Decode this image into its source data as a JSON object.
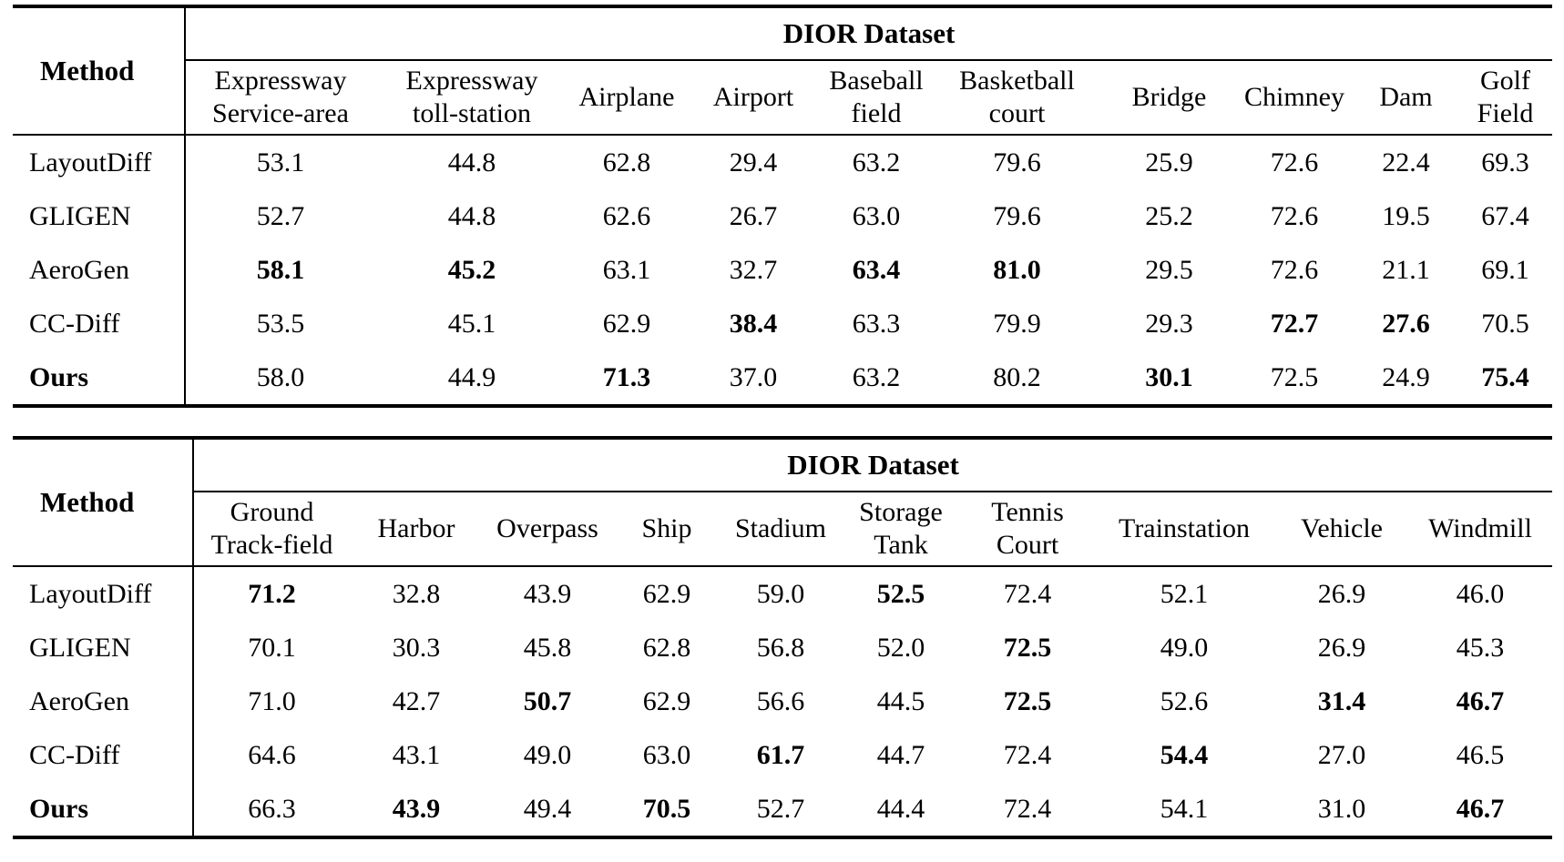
{
  "page": {
    "background": "#ffffff",
    "text_color": "#000000",
    "rule_color": "#000000"
  },
  "tables": [
    {
      "dataset_header": "DIOR Dataset",
      "method_header": "Method",
      "columns": [
        {
          "lines": [
            "Expressway",
            "Service-area"
          ]
        },
        {
          "lines": [
            "Expressway",
            "toll-station"
          ]
        },
        {
          "lines": [
            "Airplane"
          ]
        },
        {
          "lines": [
            "Airport"
          ]
        },
        {
          "lines": [
            "Baseball",
            "field"
          ]
        },
        {
          "lines": [
            "Basketball",
            "court"
          ]
        },
        {
          "lines": [
            "Bridge"
          ]
        },
        {
          "lines": [
            "Chimney"
          ]
        },
        {
          "lines": [
            "Dam"
          ]
        },
        {
          "lines": [
            "Golf",
            "Field"
          ]
        }
      ],
      "rows": [
        {
          "method": "LayoutDiff",
          "method_bold": false,
          "values": [
            {
              "v": "53.1",
              "b": false
            },
            {
              "v": "44.8",
              "b": false
            },
            {
              "v": "62.8",
              "b": false
            },
            {
              "v": "29.4",
              "b": false
            },
            {
              "v": "63.2",
              "b": false
            },
            {
              "v": "79.6",
              "b": false
            },
            {
              "v": "25.9",
              "b": false
            },
            {
              "v": "72.6",
              "b": false
            },
            {
              "v": "22.4",
              "b": false
            },
            {
              "v": "69.3",
              "b": false
            }
          ]
        },
        {
          "method": "GLIGEN",
          "method_bold": false,
          "values": [
            {
              "v": "52.7",
              "b": false
            },
            {
              "v": "44.8",
              "b": false
            },
            {
              "v": "62.6",
              "b": false
            },
            {
              "v": "26.7",
              "b": false
            },
            {
              "v": "63.0",
              "b": false
            },
            {
              "v": "79.6",
              "b": false
            },
            {
              "v": "25.2",
              "b": false
            },
            {
              "v": "72.6",
              "b": false
            },
            {
              "v": "19.5",
              "b": false
            },
            {
              "v": "67.4",
              "b": false
            }
          ]
        },
        {
          "method": "AeroGen",
          "method_bold": false,
          "values": [
            {
              "v": "58.1",
              "b": true
            },
            {
              "v": "45.2",
              "b": true
            },
            {
              "v": "63.1",
              "b": false
            },
            {
              "v": "32.7",
              "b": false
            },
            {
              "v": "63.4",
              "b": true
            },
            {
              "v": "81.0",
              "b": true
            },
            {
              "v": "29.5",
              "b": false
            },
            {
              "v": "72.6",
              "b": false
            },
            {
              "v": "21.1",
              "b": false
            },
            {
              "v": "69.1",
              "b": false
            }
          ]
        },
        {
          "method": "CC-Diff",
          "method_bold": false,
          "values": [
            {
              "v": "53.5",
              "b": false
            },
            {
              "v": "45.1",
              "b": false
            },
            {
              "v": "62.9",
              "b": false
            },
            {
              "v": "38.4",
              "b": true
            },
            {
              "v": "63.3",
              "b": false
            },
            {
              "v": "79.9",
              "b": false
            },
            {
              "v": "29.3",
              "b": false
            },
            {
              "v": "72.7",
              "b": true
            },
            {
              "v": "27.6",
              "b": true
            },
            {
              "v": "70.5",
              "b": false
            }
          ]
        },
        {
          "method": "Ours",
          "method_bold": true,
          "values": [
            {
              "v": "58.0",
              "b": false
            },
            {
              "v": "44.9",
              "b": false
            },
            {
              "v": "71.3",
              "b": true
            },
            {
              "v": "37.0",
              "b": false
            },
            {
              "v": "63.2",
              "b": false
            },
            {
              "v": "80.2",
              "b": false
            },
            {
              "v": "30.1",
              "b": true
            },
            {
              "v": "72.5",
              "b": false
            },
            {
              "v": "24.9",
              "b": false
            },
            {
              "v": "75.4",
              "b": true
            }
          ]
        }
      ]
    },
    {
      "dataset_header": "DIOR Dataset",
      "method_header": "Method",
      "columns": [
        {
          "lines": [
            "Ground",
            "Track-field"
          ]
        },
        {
          "lines": [
            "Harbor"
          ]
        },
        {
          "lines": [
            "Overpass"
          ]
        },
        {
          "lines": [
            "Ship"
          ]
        },
        {
          "lines": [
            "Stadium"
          ]
        },
        {
          "lines": [
            "Storage",
            "Tank"
          ]
        },
        {
          "lines": [
            "Tennis",
            "Court"
          ]
        },
        {
          "lines": [
            "Trainstation"
          ]
        },
        {
          "lines": [
            "Vehicle"
          ]
        },
        {
          "lines": [
            "Windmill"
          ]
        }
      ],
      "rows": [
        {
          "method": "LayoutDiff",
          "method_bold": false,
          "values": [
            {
              "v": "71.2",
              "b": true
            },
            {
              "v": "32.8",
              "b": false
            },
            {
              "v": "43.9",
              "b": false
            },
            {
              "v": "62.9",
              "b": false
            },
            {
              "v": "59.0",
              "b": false
            },
            {
              "v": "52.5",
              "b": true
            },
            {
              "v": "72.4",
              "b": false
            },
            {
              "v": "52.1",
              "b": false
            },
            {
              "v": "26.9",
              "b": false
            },
            {
              "v": "46.0",
              "b": false
            }
          ]
        },
        {
          "method": "GLIGEN",
          "method_bold": false,
          "values": [
            {
              "v": "70.1",
              "b": false
            },
            {
              "v": "30.3",
              "b": false
            },
            {
              "v": "45.8",
              "b": false
            },
            {
              "v": "62.8",
              "b": false
            },
            {
              "v": "56.8",
              "b": false
            },
            {
              "v": "52.0",
              "b": false
            },
            {
              "v": "72.5",
              "b": true
            },
            {
              "v": "49.0",
              "b": false
            },
            {
              "v": "26.9",
              "b": false
            },
            {
              "v": "45.3",
              "b": false
            }
          ]
        },
        {
          "method": "AeroGen",
          "method_bold": false,
          "values": [
            {
              "v": "71.0",
              "b": false
            },
            {
              "v": "42.7",
              "b": false
            },
            {
              "v": "50.7",
              "b": true
            },
            {
              "v": "62.9",
              "b": false
            },
            {
              "v": "56.6",
              "b": false
            },
            {
              "v": "44.5",
              "b": false
            },
            {
              "v": "72.5",
              "b": true
            },
            {
              "v": "52.6",
              "b": false
            },
            {
              "v": "31.4",
              "b": true
            },
            {
              "v": "46.7",
              "b": true
            }
          ]
        },
        {
          "method": "CC-Diff",
          "method_bold": false,
          "values": [
            {
              "v": "64.6",
              "b": false
            },
            {
              "v": "43.1",
              "b": false
            },
            {
              "v": "49.0",
              "b": false
            },
            {
              "v": "63.0",
              "b": false
            },
            {
              "v": "61.7",
              "b": true
            },
            {
              "v": "44.7",
              "b": false
            },
            {
              "v": "72.4",
              "b": false
            },
            {
              "v": "54.4",
              "b": true
            },
            {
              "v": "27.0",
              "b": false
            },
            {
              "v": "46.5",
              "b": false
            }
          ]
        },
        {
          "method": "Ours",
          "method_bold": true,
          "values": [
            {
              "v": "66.3",
              "b": false
            },
            {
              "v": "43.9",
              "b": true
            },
            {
              "v": "49.4",
              "b": false
            },
            {
              "v": "70.5",
              "b": true
            },
            {
              "v": "52.7",
              "b": false
            },
            {
              "v": "44.4",
              "b": false
            },
            {
              "v": "72.4",
              "b": false
            },
            {
              "v": "54.1",
              "b": false
            },
            {
              "v": "31.0",
              "b": false
            },
            {
              "v": "46.7",
              "b": true
            }
          ]
        }
      ]
    }
  ]
}
